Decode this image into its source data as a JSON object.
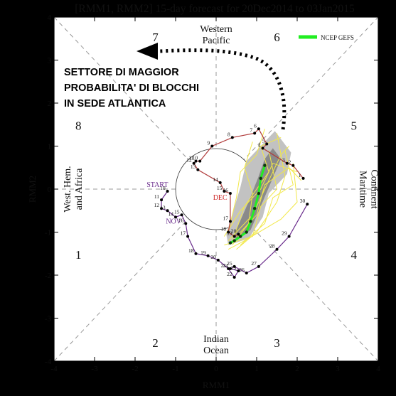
{
  "chart_data": {
    "type": "scatter",
    "title": "[RMM1, RMM2] 15-day forecast for 20Dec2014 to 03Jan2015",
    "xlabel": "RMM1",
    "ylabel": "RMM2",
    "xlim": [
      -4,
      4
    ],
    "ylim": [
      -4,
      4
    ],
    "xticks": [
      "-4",
      "-3",
      "-2",
      "-1",
      "0",
      "1",
      "2",
      "3",
      "4"
    ],
    "yticks": [
      "-4",
      "-3",
      "-2",
      "-1",
      "0",
      "1",
      "2",
      "3",
      "4"
    ],
    "phases": [
      {
        "label": "1",
        "x": -3.4,
        "y": -1.5
      },
      {
        "label": "2",
        "x": -1.5,
        "y": -3.55
      },
      {
        "label": "3",
        "x": 1.5,
        "y": -3.55
      },
      {
        "label": "4",
        "x": 3.4,
        "y": -1.5
      },
      {
        "label": "5",
        "x": 3.4,
        "y": 1.5
      },
      {
        "label": "6",
        "x": 1.5,
        "y": 3.55
      },
      {
        "label": "7",
        "x": -1.5,
        "y": 3.55
      },
      {
        "label": "8",
        "x": -3.4,
        "y": 1.5
      }
    ],
    "region_labels": {
      "top": [
        "Western",
        "Pacific"
      ],
      "bottom": [
        "Indian",
        "Ocean"
      ],
      "left": [
        "West. Hem.",
        "and Africa"
      ],
      "right": [
        "Maritime",
        "Continent"
      ]
    },
    "legend": {
      "label": "NCEP GEFS",
      "color": "#22ee22",
      "position": "top-right"
    },
    "observed_series": [
      {
        "name": "DEC",
        "color": "#b03a3a",
        "points": [
          {
            "day": "1",
            "x": 2.15,
            "y": 0.25
          },
          {
            "day": "2",
            "x": 1.9,
            "y": 0.55
          },
          {
            "day": "3",
            "x": 1.75,
            "y": 0.6
          },
          {
            "day": "4",
            "x": 1.15,
            "y": 0.95
          },
          {
            "day": "5",
            "x": 1.25,
            "y": 1.05
          },
          {
            "day": "6",
            "x": 1.05,
            "y": 1.4
          },
          {
            "day": "7",
            "x": 0.95,
            "y": 1.3
          },
          {
            "day": "8",
            "x": 0.4,
            "y": 1.2
          },
          {
            "day": "9",
            "x": -0.1,
            "y": 1.0
          },
          {
            "day": "10",
            "x": -0.4,
            "y": 0.65
          },
          {
            "day": "11",
            "x": -0.5,
            "y": 0.65
          },
          {
            "day": "12",
            "x": -0.55,
            "y": 0.6
          },
          {
            "day": "13",
            "x": -0.45,
            "y": 0.45
          },
          {
            "day": "14",
            "x": 0.1,
            "y": 0.15
          },
          {
            "day": "15",
            "x": 0.2,
            "y": -0.05
          },
          {
            "day": "16",
            "x": 0.35,
            "y": -0.1
          },
          {
            "day": "17",
            "x": 0.35,
            "y": -0.75
          },
          {
            "day": "18",
            "x": 0.3,
            "y": -1.0
          },
          {
            "day": "19",
            "x": 0.45,
            "y": -1.1
          },
          {
            "day": "20",
            "x": 0.55,
            "y": -1.05
          }
        ]
      },
      {
        "name": "NOV",
        "color": "#6a2c8c",
        "points": [
          {
            "day": "10",
            "x": -1.2,
            "y": -0.05
          },
          {
            "day": "11",
            "x": -1.35,
            "y": -0.25
          },
          {
            "day": "12",
            "x": -1.35,
            "y": -0.45
          },
          {
            "day": "13",
            "x": -1.2,
            "y": -0.5
          },
          {
            "day": "14",
            "x": -1.0,
            "y": -0.65
          },
          {
            "day": "15",
            "x": -0.85,
            "y": -0.6
          },
          {
            "day": "16",
            "x": -0.75,
            "y": -0.8
          },
          {
            "day": "17",
            "x": -0.7,
            "y": -1.1
          },
          {
            "day": "18",
            "x": -0.5,
            "y": -1.5
          },
          {
            "day": "19",
            "x": -0.2,
            "y": -1.55
          },
          {
            "day": "20",
            "x": 0.05,
            "y": -1.65
          },
          {
            "day": "21",
            "x": 0.3,
            "y": -1.85
          },
          {
            "day": "22",
            "x": 0.45,
            "y": -2.05
          },
          {
            "day": "23",
            "x": 0.55,
            "y": -1.9
          },
          {
            "day": "24",
            "x": 0.35,
            "y": -1.85
          },
          {
            "day": "25",
            "x": 0.45,
            "y": -1.8
          },
          {
            "day": "26",
            "x": 0.75,
            "y": -1.95
          },
          {
            "day": "27",
            "x": 1.05,
            "y": -1.8
          },
          {
            "day": "28",
            "x": 1.5,
            "y": -1.4
          },
          {
            "day": "29",
            "x": 1.8,
            "y": -1.1
          },
          {
            "day": "30",
            "x": 2.25,
            "y": -0.35
          }
        ]
      }
    ],
    "series_labels": [
      {
        "text": "START",
        "x": -1.45,
        "y": 0.05,
        "color": "#6a2c8c"
      },
      {
        "text": "NOV",
        "x": -1.05,
        "y": -0.8,
        "color": "#6a2c8c"
      },
      {
        "text": "DEC",
        "x": 0.1,
        "y": -0.25,
        "color": "#cc2222"
      }
    ],
    "ensemble_mean": [
      {
        "x": 0.35,
        "y": -1.25
      },
      {
        "x": 0.45,
        "y": -1.2
      },
      {
        "x": 0.6,
        "y": -1.1
      },
      {
        "x": 0.75,
        "y": -1.0
      },
      {
        "x": 0.85,
        "y": -0.75
      },
      {
        "x": 0.95,
        "y": -0.45
      },
      {
        "x": 1.05,
        "y": -0.1
      },
      {
        "x": 1.1,
        "y": 0.25
      },
      {
        "x": 1.2,
        "y": 0.55
      }
    ],
    "uncertainty_outer": [
      {
        "x": 0.25,
        "y": -1.05
      },
      {
        "x": 0.6,
        "y": 0.05
      },
      {
        "x": 0.75,
        "y": 0.65
      },
      {
        "x": 1.05,
        "y": 0.95
      },
      {
        "x": 1.45,
        "y": 1.35
      },
      {
        "x": 1.85,
        "y": 0.85
      },
      {
        "x": 1.75,
        "y": 0.35
      },
      {
        "x": 1.3,
        "y": -0.1
      },
      {
        "x": 1.15,
        "y": -0.65
      },
      {
        "x": 0.8,
        "y": -1.15
      },
      {
        "x": 0.3,
        "y": -1.3
      }
    ],
    "uncertainty_inner": [
      {
        "x": 0.45,
        "y": -1.05
      },
      {
        "x": 0.8,
        "y": -0.3
      },
      {
        "x": 1.05,
        "y": 0.3
      },
      {
        "x": 1.2,
        "y": 0.7
      },
      {
        "x": 1.4,
        "y": 0.95
      },
      {
        "x": 1.6,
        "y": 0.7
      },
      {
        "x": 1.35,
        "y": 0.15
      },
      {
        "x": 1.1,
        "y": -0.4
      },
      {
        "x": 0.85,
        "y": -0.95
      },
      {
        "x": 0.5,
        "y": -1.2
      }
    ],
    "ensemble_members": [
      [
        {
          "x": 0.3,
          "y": -1.2
        },
        {
          "x": 0.9,
          "y": -0.6
        },
        {
          "x": 1.3,
          "y": 0.2
        },
        {
          "x": 1.6,
          "y": 0.8
        },
        {
          "x": 1.8,
          "y": 1.0
        }
      ],
      [
        {
          "x": 0.4,
          "y": -1.3
        },
        {
          "x": 0.8,
          "y": -0.8
        },
        {
          "x": 0.9,
          "y": -0.1
        },
        {
          "x": 0.7,
          "y": 0.5
        },
        {
          "x": 0.9,
          "y": 1.1
        }
      ],
      [
        {
          "x": 0.2,
          "y": -1.1
        },
        {
          "x": 0.6,
          "y": -0.5
        },
        {
          "x": 1.1,
          "y": 0.0
        },
        {
          "x": 1.4,
          "y": 0.6
        },
        {
          "x": 2.0,
          "y": 0.4
        }
      ],
      [
        {
          "x": 0.5,
          "y": -1.4
        },
        {
          "x": 1.0,
          "y": -1.0
        },
        {
          "x": 1.5,
          "y": -0.3
        },
        {
          "x": 1.7,
          "y": 0.3
        },
        {
          "x": 1.5,
          "y": 1.3
        }
      ],
      [
        {
          "x": 0.3,
          "y": -1.0
        },
        {
          "x": 0.5,
          "y": -0.2
        },
        {
          "x": 0.6,
          "y": 0.4
        },
        {
          "x": 1.0,
          "y": 0.8
        },
        {
          "x": 1.2,
          "y": 1.4
        }
      ],
      [
        {
          "x": 0.6,
          "y": -1.3
        },
        {
          "x": 1.2,
          "y": -0.8
        },
        {
          "x": 1.4,
          "y": -0.2
        },
        {
          "x": 1.9,
          "y": 0.1
        },
        {
          "x": 1.7,
          "y": 0.9
        }
      ],
      [
        {
          "x": 0.4,
          "y": -1.2
        },
        {
          "x": 0.7,
          "y": -0.4
        },
        {
          "x": 1.3,
          "y": 0.4
        },
        {
          "x": 1.1,
          "y": 1.0
        },
        {
          "x": 1.6,
          "y": 1.2
        }
      ],
      [
        {
          "x": 0.5,
          "y": -1.1
        },
        {
          "x": 1.0,
          "y": -0.6
        },
        {
          "x": 1.2,
          "y": 0.1
        },
        {
          "x": 1.8,
          "y": 0.5
        },
        {
          "x": 2.1,
          "y": 0.2
        }
      ],
      [
        {
          "x": 0.2,
          "y": -1.3
        },
        {
          "x": 0.9,
          "y": -1.1
        },
        {
          "x": 1.1,
          "y": -0.4
        },
        {
          "x": 1.5,
          "y": 0.0
        },
        {
          "x": 1.3,
          "y": 0.9
        }
      ],
      [
        {
          "x": 0.3,
          "y": -1.4
        },
        {
          "x": 0.7,
          "y": -1.2
        },
        {
          "x": 1.6,
          "y": -0.7
        },
        {
          "x": 2.0,
          "y": -0.3
        },
        {
          "x": 1.9,
          "y": 0.6
        }
      ]
    ],
    "annotation": {
      "lines": [
        "SETTORE DI MAGGIOR",
        "PROBABILITA' DI BLOCCHI",
        "IN SEDE ATLANTICA"
      ],
      "arrow_color": "#000000"
    }
  }
}
